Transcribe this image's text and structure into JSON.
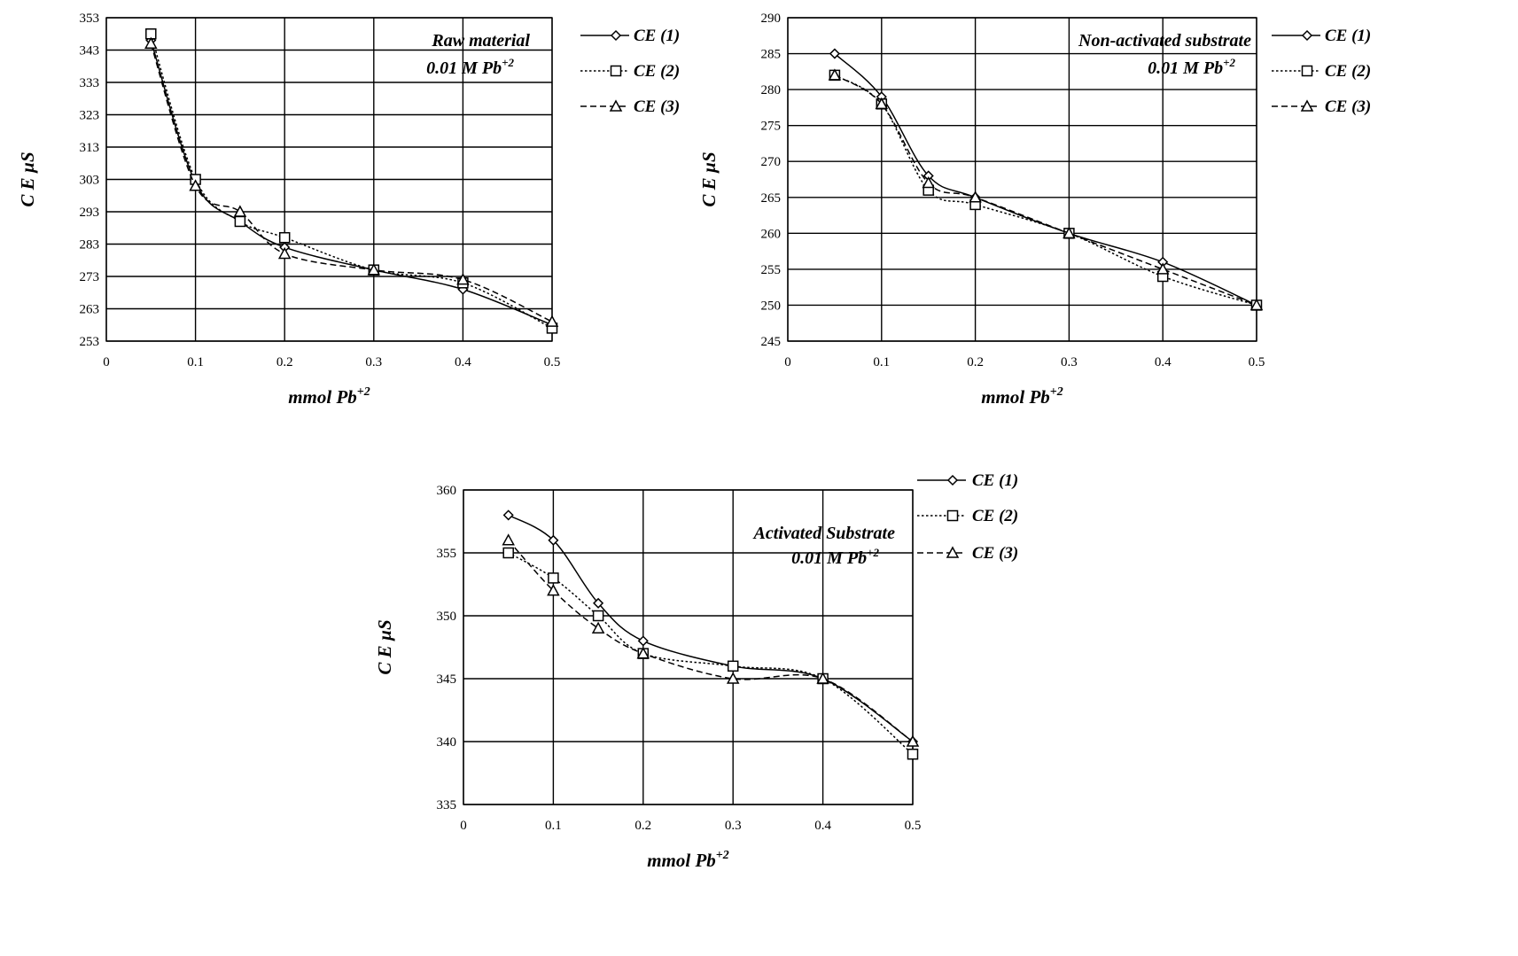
{
  "chart_data": [
    {
      "type": "line",
      "annotation": [
        "Raw material",
        "0.01 M Pb",
        "+2"
      ],
      "xlabel": "mmol Pb",
      "xlabel_sup": "+2",
      "ylabel": "C E  µS",
      "xlim": [
        0,
        0.5
      ],
      "ylim": [
        253,
        353
      ],
      "xticks": [
        0,
        0.1,
        0.2,
        0.3,
        0.4,
        0.5
      ],
      "xtick_labels": [
        "0",
        "0.1",
        "0.2",
        "0.3",
        "0.4",
        "0.5"
      ],
      "yticks": [
        253,
        263,
        273,
        283,
        293,
        303,
        313,
        323,
        333,
        343,
        353
      ],
      "grid": true,
      "legend_position": "right",
      "series": [
        {
          "name": "CE (1)",
          "marker": "diamond",
          "line": "solid",
          "x": [
            0.05,
            0.1,
            0.15,
            0.2,
            0.3,
            0.4,
            0.5
          ],
          "y": [
            346,
            302,
            290,
            282,
            275,
            269,
            258
          ]
        },
        {
          "name": "CE (2)",
          "marker": "square",
          "line": "dotted",
          "x": [
            0.05,
            0.1,
            0.15,
            0.2,
            0.3,
            0.4,
            0.5
          ],
          "y": [
            348,
            303,
            290,
            285,
            275,
            271,
            257
          ]
        },
        {
          "name": "CE (3)",
          "marker": "triangle",
          "line": "dashed",
          "x": [
            0.05,
            0.1,
            0.15,
            0.2,
            0.3,
            0.4,
            0.5
          ],
          "y": [
            345,
            301,
            293,
            280,
            275,
            272,
            259
          ]
        }
      ]
    },
    {
      "type": "line",
      "annotation": [
        "Non-activated substrate",
        "0.01 M Pb",
        "+2"
      ],
      "xlabel": "mmol Pb",
      "xlabel_sup": "+2",
      "ylabel": "C E  µS",
      "xlim": [
        0,
        0.5
      ],
      "ylim": [
        245,
        290
      ],
      "xticks": [
        0,
        0.1,
        0.2,
        0.3,
        0.4,
        0.5
      ],
      "xtick_labels": [
        "0",
        "0.1",
        "0.2",
        "0.3",
        "0.4",
        "0.5"
      ],
      "yticks": [
        245,
        250,
        255,
        260,
        265,
        270,
        275,
        280,
        285,
        290
      ],
      "grid": true,
      "legend_position": "right",
      "series": [
        {
          "name": "CE (1)",
          "marker": "diamond",
          "line": "solid",
          "x": [
            0.05,
            0.1,
            0.15,
            0.2,
            0.3,
            0.4,
            0.5
          ],
          "y": [
            285,
            279,
            268,
            265,
            260,
            256,
            250
          ]
        },
        {
          "name": "CE (2)",
          "marker": "square",
          "line": "dotted",
          "x": [
            0.05,
            0.1,
            0.15,
            0.2,
            0.3,
            0.4,
            0.5
          ],
          "y": [
            282,
            278,
            266,
            264,
            260,
            254,
            250
          ]
        },
        {
          "name": "CE (3)",
          "marker": "triangle",
          "line": "dashed",
          "x": [
            0.05,
            0.1,
            0.15,
            0.2,
            0.3,
            0.4,
            0.5
          ],
          "y": [
            282,
            278,
            267,
            265,
            260,
            255,
            250
          ]
        }
      ]
    },
    {
      "type": "line",
      "annotation": [
        "Activated Substrate",
        "0.01 M Pb",
        "+2"
      ],
      "xlabel": "mmol Pb",
      "xlabel_sup": "+2",
      "ylabel": "C E  µS",
      "xlim": [
        0,
        0.5
      ],
      "ylim": [
        335,
        360
      ],
      "xticks": [
        0,
        0.1,
        0.2,
        0.3,
        0.4,
        0.5
      ],
      "xtick_labels": [
        "0",
        "0.1",
        "0.2",
        "0.3",
        "0.4",
        "0.5"
      ],
      "yticks": [
        335,
        340,
        345,
        350,
        355,
        360
      ],
      "grid": true,
      "legend_position": "right",
      "series": [
        {
          "name": "CE (1)",
          "marker": "diamond",
          "line": "solid",
          "x": [
            0.05,
            0.1,
            0.15,
            0.2,
            0.3,
            0.4,
            0.5
          ],
          "y": [
            358,
            356,
            351,
            348,
            346,
            345,
            340
          ]
        },
        {
          "name": "CE (2)",
          "marker": "square",
          "line": "dotted",
          "x": [
            0.05,
            0.1,
            0.15,
            0.2,
            0.3,
            0.4,
            0.5
          ],
          "y": [
            355,
            353,
            350,
            347,
            346,
            345,
            339
          ]
        },
        {
          "name": "CE (3)",
          "marker": "triangle",
          "line": "dashed",
          "x": [
            0.05,
            0.1,
            0.15,
            0.2,
            0.3,
            0.4,
            0.5
          ],
          "y": [
            356,
            352,
            349,
            347,
            345,
            345,
            340
          ]
        }
      ]
    }
  ]
}
